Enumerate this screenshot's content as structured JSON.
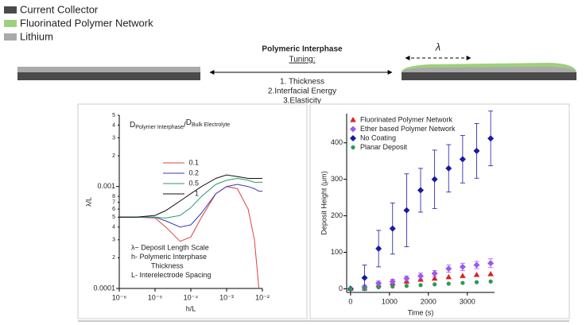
{
  "schematic": {
    "legend": [
      "Current Collector",
      "Fluorinated Polymer Network",
      "Lithium"
    ],
    "heading": "Polymeric Interphase",
    "subheading": "Tuning:",
    "items": [
      "1. Thickness",
      "2.Interfacial Energy",
      "3.Elasticity"
    ],
    "lambda": "λ"
  },
  "chart_data": [
    {
      "type": "line",
      "x_label": "h/L",
      "y_label": "λ/L",
      "legend_title": {
        "d1": "D",
        "sub1": "Polymer Interphase",
        "sep": "/",
        "d2": "D",
        "sub2": "Bulk Electrolyte"
      },
      "annotations": [
        "λ~ Deposit Length Scale",
        "h- Polymeric Interphase",
        "Thickness",
        "L- Interelectrode Spacing"
      ],
      "xscale": "log",
      "yscale": "log",
      "xlim": [
        1e-06,
        0.01
      ],
      "ylim": [
        0.0001,
        0.005
      ],
      "xticks": [
        {
          "value": 1e-06,
          "label": "10⁻⁶"
        },
        {
          "value": 1e-05,
          "label": "10⁻⁵"
        },
        {
          "value": 0.0001,
          "label": "10⁻⁴"
        },
        {
          "value": 0.001,
          "label": "10⁻³"
        },
        {
          "value": 0.01,
          "label": "10⁻²"
        }
      ],
      "yticks": [
        0.0001,
        {
          "value": 0.0002,
          "label": "2"
        },
        {
          "value": 0.0003,
          "label": "3"
        },
        {
          "value": 0.0004,
          "label": "4"
        },
        {
          "value": 0.0005,
          "label": "5"
        },
        {
          "value": 0.0006,
          "label": "6"
        },
        {
          "value": 0.0007,
          "label": "7"
        },
        {
          "value": 0.0008,
          "label": "8"
        },
        0.001,
        {
          "value": 0.002,
          "label": "2"
        },
        {
          "value": 0.003,
          "label": "3"
        },
        {
          "value": 0.004,
          "label": "4"
        },
        {
          "value": 0.005,
          "label": "5"
        }
      ],
      "x": [
        1e-06,
        3e-06,
        1e-05,
        2e-05,
        5e-05,
        0.0001,
        0.0002,
        0.0005,
        0.001,
        0.002,
        0.004,
        0.006,
        0.008,
        0.01
      ],
      "series": [
        {
          "name": "0.1",
          "color": "#e04040",
          "values": [
            0.0005,
            0.0005,
            0.00049,
            0.0004,
            0.00029,
            0.00032,
            0.0005,
            0.00085,
            0.001,
            0.00095,
            0.0006,
            0.0003,
            0.0001,
            null
          ]
        },
        {
          "name": "0.2",
          "color": "#3a3ab8",
          "values": [
            0.0005,
            0.0005,
            0.0005,
            0.00046,
            0.0004,
            0.00042,
            0.00055,
            0.00085,
            0.001,
            0.00105,
            0.001,
            0.00095,
            0.0009,
            0.0009
          ]
        },
        {
          "name": "0.5",
          "color": "#2a9a6a",
          "values": [
            0.0005,
            0.0005,
            0.0005,
            0.00049,
            0.00052,
            0.00062,
            0.0008,
            0.00105,
            0.00115,
            0.0012,
            0.00115,
            0.0011,
            0.0011,
            0.0011
          ]
        },
        {
          "name": "1",
          "color": "#111111",
          "values": [
            0.0005,
            0.0005,
            0.00052,
            0.00058,
            0.00072,
            0.00085,
            0.001,
            0.0012,
            0.0013,
            0.00125,
            0.0012,
            0.0012,
            0.0012,
            0.0012
          ]
        }
      ]
    },
    {
      "type": "scatter",
      "x_label": "Time (s)",
      "y_label": "Deposit Height (μm)",
      "xlim": [
        -100,
        3700
      ],
      "ylim": [
        -10,
        480
      ],
      "xticks": [
        0,
        1000,
        2000,
        3000
      ],
      "yticks": [
        0,
        100,
        200,
        300,
        400
      ],
      "x": [
        0,
        360,
        720,
        1080,
        1440,
        1800,
        2160,
        2520,
        2880,
        3240,
        3600
      ],
      "series": [
        {
          "name": "Fluorinated Polymer Network",
          "color": "#e02020",
          "marker": "triangle",
          "values": [
            0,
            3,
            10,
            15,
            20,
            25,
            28,
            32,
            35,
            38,
            40
          ]
        },
        {
          "name": "Ether based Polymer Network",
          "color": "#9b59f0",
          "marker": "diamond",
          "values": [
            0,
            5,
            15,
            20,
            28,
            35,
            42,
            55,
            60,
            65,
            70
          ],
          "errors": [
            0,
            5,
            6,
            6,
            7,
            8,
            8,
            10,
            10,
            10,
            12
          ]
        },
        {
          "name": "No Coating",
          "color": "#1a1aa0",
          "marker": "diamond",
          "values": [
            0,
            30,
            110,
            165,
            215,
            270,
            300,
            330,
            355,
            378,
            412
          ],
          "errors": [
            0,
            35,
            50,
            70,
            100,
            60,
            80,
            65,
            65,
            75,
            75
          ]
        },
        {
          "name": "Planar Deposit",
          "color": "#2a9a5a",
          "marker": "circle",
          "values": [
            0,
            2,
            4,
            6,
            8,
            10,
            12,
            14,
            16,
            18,
            20
          ]
        }
      ]
    }
  ]
}
